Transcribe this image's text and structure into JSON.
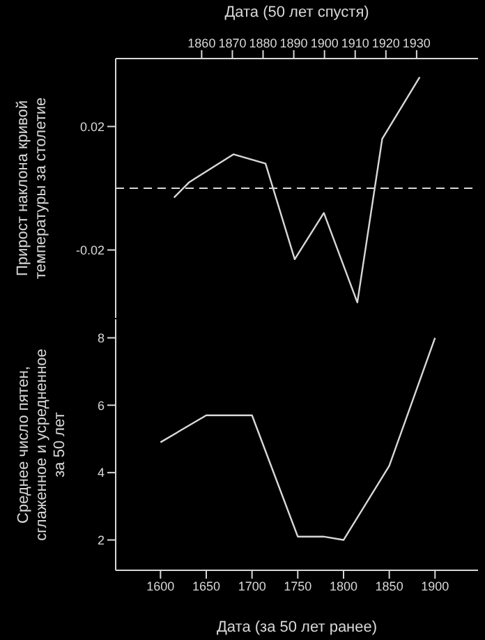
{
  "chart_data": [
    {
      "type": "line",
      "xlabel": "Дата (50 лет спустя)",
      "ylabel": "Прирост наклона кривой температуры за столетие",
      "xlim": [
        1832,
        1950
      ],
      "xticks": [
        1860,
        1870,
        1880,
        1890,
        1900,
        1910,
        1920,
        1930
      ],
      "ylim": [
        -0.042,
        0.042
      ],
      "yticks": [
        -0.02,
        0.02
      ],
      "grid": false,
      "legend": false,
      "marker": "none",
      "line_style": "solid",
      "series": [
        {
          "color": "#d8d8d8",
          "x": [
            1851,
            1856,
            1870.4,
            1880.8,
            1890.3,
            1899.8,
            1910.7,
            1918.8,
            1931
          ],
          "values": [
            -0.003,
            0.002,
            0.011,
            0.008,
            -0.023,
            -0.008,
            -0.037,
            0.016,
            0.036
          ]
        }
      ],
      "ref_lines": [
        {
          "axis": "y",
          "value": 0,
          "line_style": "dashed",
          "color": "#d8d8d8"
        }
      ]
    },
    {
      "type": "line",
      "xlabel": "Дата (за 50 лет ранее)",
      "ylabel": "Среднее число пятен, сглаженное и усредненное за 50 лет",
      "xlim": [
        1551,
        1947
      ],
      "xticks": [
        1600,
        1650,
        1700,
        1750,
        1800,
        1850,
        1900
      ],
      "ylim": [
        1.1,
        8.55
      ],
      "yticks": [
        2,
        4,
        6,
        8
      ],
      "grid": false,
      "legend": false,
      "marker": "none",
      "line_style": "solid",
      "series": [
        {
          "color": "#d8d8d8",
          "x": [
            1600,
            1650,
            1700,
            1750,
            1778,
            1800,
            1850,
            1900
          ],
          "values": [
            4.9,
            5.7,
            5.7,
            2.1,
            2.1,
            2.0,
            4.2,
            8.0
          ]
        }
      ]
    }
  ]
}
